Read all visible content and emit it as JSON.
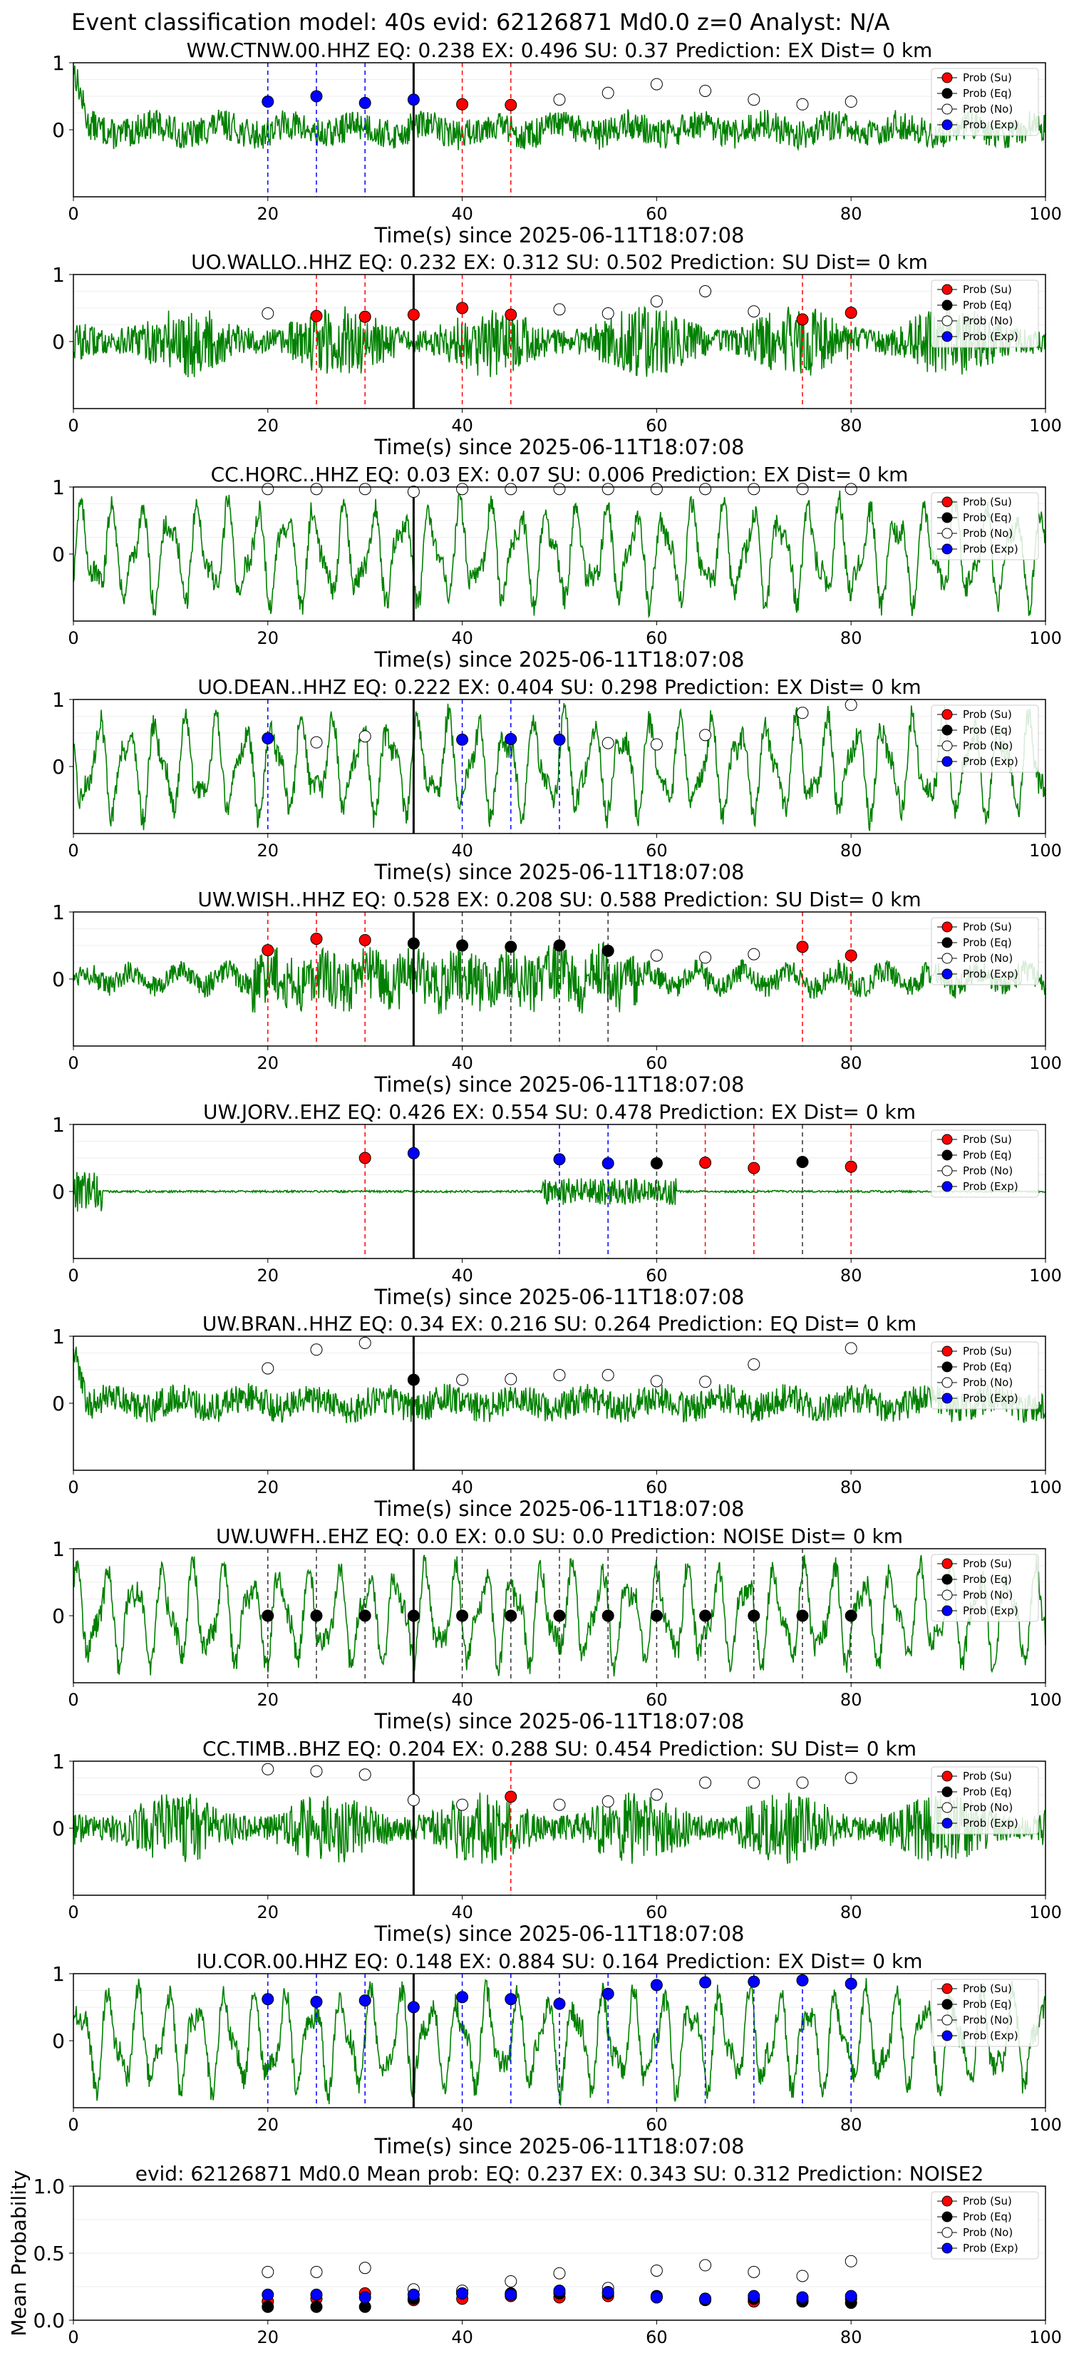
{
  "figure": {
    "suptitle": "Event classification model: 40s evid: 62126871 Md0.0 z=0 Analyst: N/A",
    "xlabel": "Time(s) since 2025-06-11T18:07:08",
    "legend": [
      "Prob (Su)",
      "Prob (Eq)",
      "Prob (No)",
      "Prob (Exp)"
    ],
    "colors": {
      "su": "#ff0000",
      "eq": "#000000",
      "no": "#ffffff",
      "exp": "#0000ff",
      "trace": "#008000"
    },
    "xticks": [
      "0",
      "20",
      "40",
      "60",
      "80",
      "100"
    ],
    "yticks_trace": [
      "0",
      "1"
    ]
  },
  "chart_data": [
    {
      "type": "scatter",
      "title": "WW.CTNW.00.HHZ   EQ: 0.238   EX: 0.496   SU: 0.37   Prediction: EX    Dist= 0 km",
      "xlim": [
        0,
        100
      ],
      "ylim": [
        -1,
        1
      ],
      "trace_style": "noise",
      "event_line": 35,
      "points": [
        {
          "x": 20,
          "y": 0.42,
          "c": "exp"
        },
        {
          "x": 25,
          "y": 0.5,
          "c": "exp"
        },
        {
          "x": 30,
          "y": 0.4,
          "c": "exp"
        },
        {
          "x": 35,
          "y": 0.45,
          "c": "exp"
        },
        {
          "x": 40,
          "y": 0.38,
          "c": "su"
        },
        {
          "x": 45,
          "y": 0.37,
          "c": "su"
        },
        {
          "x": 50,
          "y": 0.45,
          "c": "no"
        },
        {
          "x": 55,
          "y": 0.55,
          "c": "no"
        },
        {
          "x": 60,
          "y": 0.68,
          "c": "no"
        },
        {
          "x": 65,
          "y": 0.58,
          "c": "no"
        },
        {
          "x": 70,
          "y": 0.45,
          "c": "no"
        },
        {
          "x": 75,
          "y": 0.38,
          "c": "no"
        },
        {
          "x": 80,
          "y": 0.42,
          "c": "no"
        }
      ]
    },
    {
      "type": "scatter",
      "title": "UO.WALLO..HHZ   EQ: 0.232  EX: 0.312  SU: 0.502   Prediction: SU    Dist= 0 km",
      "xlim": [
        0,
        100
      ],
      "ylim": [
        -1,
        1
      ],
      "trace_style": "noisy",
      "event_line": 35,
      "points": [
        {
          "x": 20,
          "y": 0.42,
          "c": "no"
        },
        {
          "x": 25,
          "y": 0.38,
          "c": "su"
        },
        {
          "x": 30,
          "y": 0.37,
          "c": "su"
        },
        {
          "x": 35,
          "y": 0.4,
          "c": "su"
        },
        {
          "x": 40,
          "y": 0.5,
          "c": "su"
        },
        {
          "x": 45,
          "y": 0.4,
          "c": "su"
        },
        {
          "x": 50,
          "y": 0.48,
          "c": "no"
        },
        {
          "x": 55,
          "y": 0.42,
          "c": "no"
        },
        {
          "x": 60,
          "y": 0.6,
          "c": "no"
        },
        {
          "x": 65,
          "y": 0.75,
          "c": "no"
        },
        {
          "x": 70,
          "y": 0.45,
          "c": "no"
        },
        {
          "x": 75,
          "y": 0.33,
          "c": "su"
        },
        {
          "x": 80,
          "y": 0.43,
          "c": "su"
        }
      ]
    },
    {
      "type": "scatter",
      "title": "CC.HORC..HHZ   EQ: 0.03  EX: 0.07  SU: 0.006   Prediction: EX    Dist= 0 km",
      "xlim": [
        0,
        100
      ],
      "ylim": [
        -1,
        1
      ],
      "trace_style": "wave",
      "event_line": 35,
      "points": [
        {
          "x": 20,
          "y": 0.97,
          "c": "no"
        },
        {
          "x": 25,
          "y": 0.97,
          "c": "no"
        },
        {
          "x": 30,
          "y": 0.97,
          "c": "no"
        },
        {
          "x": 35,
          "y": 0.93,
          "c": "no"
        },
        {
          "x": 40,
          "y": 0.97,
          "c": "no"
        },
        {
          "x": 45,
          "y": 0.97,
          "c": "no"
        },
        {
          "x": 50,
          "y": 0.97,
          "c": "no"
        },
        {
          "x": 55,
          "y": 0.97,
          "c": "no"
        },
        {
          "x": 60,
          "y": 0.97,
          "c": "no"
        },
        {
          "x": 65,
          "y": 0.97,
          "c": "no"
        },
        {
          "x": 70,
          "y": 0.97,
          "c": "no"
        },
        {
          "x": 75,
          "y": 0.97,
          "c": "no"
        },
        {
          "x": 80,
          "y": 0.97,
          "c": "no"
        }
      ]
    },
    {
      "type": "scatter",
      "title": "UO.DEAN..HHZ   EQ: 0.222  EX: 0.404  SU: 0.298   Prediction: EX    Dist= 0 km",
      "xlim": [
        0,
        100
      ],
      "ylim": [
        -1,
        1
      ],
      "trace_style": "wave",
      "event_line": 35,
      "points": [
        {
          "x": 20,
          "y": 0.42,
          "c": "exp"
        },
        {
          "x": 25,
          "y": 0.36,
          "c": "no"
        },
        {
          "x": 30,
          "y": 0.45,
          "c": "no"
        },
        {
          "x": 40,
          "y": 0.4,
          "c": "exp"
        },
        {
          "x": 45,
          "y": 0.41,
          "c": "exp"
        },
        {
          "x": 50,
          "y": 0.4,
          "c": "exp"
        },
        {
          "x": 55,
          "y": 0.35,
          "c": "no"
        },
        {
          "x": 60,
          "y": 0.33,
          "c": "no"
        },
        {
          "x": 65,
          "y": 0.47,
          "c": "no"
        },
        {
          "x": 75,
          "y": 0.8,
          "c": "no"
        },
        {
          "x": 80,
          "y": 0.92,
          "c": "no"
        }
      ]
    },
    {
      "type": "scatter",
      "title": "UW.WISH..HHZ   EQ: 0.528  EX: 0.208  SU: 0.588   Prediction: SU    Dist= 0 km",
      "xlim": [
        0,
        100
      ],
      "ylim": [
        -1,
        1
      ],
      "trace_style": "burst",
      "event_line": 35,
      "points": [
        {
          "x": 20,
          "y": 0.43,
          "c": "su"
        },
        {
          "x": 25,
          "y": 0.6,
          "c": "su"
        },
        {
          "x": 30,
          "y": 0.58,
          "c": "su"
        },
        {
          "x": 35,
          "y": 0.53,
          "c": "eq"
        },
        {
          "x": 40,
          "y": 0.5,
          "c": "eq"
        },
        {
          "x": 45,
          "y": 0.48,
          "c": "eq"
        },
        {
          "x": 50,
          "y": 0.5,
          "c": "eq"
        },
        {
          "x": 55,
          "y": 0.42,
          "c": "eq"
        },
        {
          "x": 60,
          "y": 0.35,
          "c": "no"
        },
        {
          "x": 65,
          "y": 0.32,
          "c": "no"
        },
        {
          "x": 70,
          "y": 0.37,
          "c": "no"
        },
        {
          "x": 75,
          "y": 0.48,
          "c": "su"
        },
        {
          "x": 80,
          "y": 0.35,
          "c": "su"
        }
      ]
    },
    {
      "type": "scatter",
      "title": "UW.JORV..EHZ   EQ: 0.426  EX: 0.554  SU: 0.478   Prediction: EX    Dist= 0 km",
      "xlim": [
        0,
        100
      ],
      "ylim": [
        -1,
        1
      ],
      "trace_style": "quiet",
      "event_line": 35,
      "points": [
        {
          "x": 30,
          "y": 0.5,
          "c": "su"
        },
        {
          "x": 35,
          "y": 0.57,
          "c": "exp"
        },
        {
          "x": 50,
          "y": 0.48,
          "c": "exp"
        },
        {
          "x": 55,
          "y": 0.42,
          "c": "exp"
        },
        {
          "x": 60,
          "y": 0.42,
          "c": "eq"
        },
        {
          "x": 65,
          "y": 0.43,
          "c": "su"
        },
        {
          "x": 70,
          "y": 0.35,
          "c": "su"
        },
        {
          "x": 75,
          "y": 0.44,
          "c": "eq"
        },
        {
          "x": 80,
          "y": 0.37,
          "c": "su"
        }
      ]
    },
    {
      "type": "scatter",
      "title": "UW.BRAN..HHZ   EQ: 0.34  EX: 0.216  SU: 0.264   Prediction: EQ    Dist= 0 km",
      "xlim": [
        0,
        100
      ],
      "ylim": [
        -1,
        1
      ],
      "trace_style": "noise",
      "event_line": 35,
      "points": [
        {
          "x": 20,
          "y": 0.52,
          "c": "no"
        },
        {
          "x": 25,
          "y": 0.8,
          "c": "no"
        },
        {
          "x": 30,
          "y": 0.9,
          "c": "no"
        },
        {
          "x": 35,
          "y": 0.35,
          "c": "eq"
        },
        {
          "x": 40,
          "y": 0.35,
          "c": "no"
        },
        {
          "x": 45,
          "y": 0.36,
          "c": "no"
        },
        {
          "x": 50,
          "y": 0.42,
          "c": "no"
        },
        {
          "x": 55,
          "y": 0.42,
          "c": "no"
        },
        {
          "x": 60,
          "y": 0.33,
          "c": "no"
        },
        {
          "x": 65,
          "y": 0.32,
          "c": "no"
        },
        {
          "x": 70,
          "y": 0.58,
          "c": "no"
        },
        {
          "x": 80,
          "y": 0.82,
          "c": "no"
        }
      ]
    },
    {
      "type": "scatter",
      "title": "UW.UWFH..EHZ   EQ: 0.0  EX: 0.0  SU: 0.0   Prediction: NOISE    Dist= 0 km",
      "xlim": [
        0,
        100
      ],
      "ylim": [
        -1,
        1
      ],
      "trace_style": "wave",
      "event_line": 35,
      "points": [
        {
          "x": 20,
          "y": 0.0,
          "c": "eq"
        },
        {
          "x": 25,
          "y": 0.0,
          "c": "eq"
        },
        {
          "x": 30,
          "y": 0.0,
          "c": "eq"
        },
        {
          "x": 35,
          "y": 0.0,
          "c": "eq"
        },
        {
          "x": 40,
          "y": 0.0,
          "c": "eq"
        },
        {
          "x": 45,
          "y": 0.0,
          "c": "eq"
        },
        {
          "x": 50,
          "y": 0.0,
          "c": "eq"
        },
        {
          "x": 55,
          "y": 0.0,
          "c": "eq"
        },
        {
          "x": 60,
          "y": 0.0,
          "c": "eq"
        },
        {
          "x": 65,
          "y": 0.0,
          "c": "eq"
        },
        {
          "x": 70,
          "y": 0.0,
          "c": "eq"
        },
        {
          "x": 75,
          "y": 0.0,
          "c": "eq"
        },
        {
          "x": 80,
          "y": 0.0,
          "c": "eq"
        }
      ]
    },
    {
      "type": "scatter",
      "title": "CC.TIMB..BHZ   EQ: 0.204  EX: 0.288  SU: 0.454   Prediction: SU    Dist= 0 km",
      "xlim": [
        0,
        100
      ],
      "ylim": [
        -1,
        1
      ],
      "trace_style": "noisy",
      "event_line": 35,
      "points": [
        {
          "x": 20,
          "y": 0.88,
          "c": "no"
        },
        {
          "x": 25,
          "y": 0.85,
          "c": "no"
        },
        {
          "x": 30,
          "y": 0.8,
          "c": "no"
        },
        {
          "x": 35,
          "y": 0.42,
          "c": "no"
        },
        {
          "x": 40,
          "y": 0.35,
          "c": "no"
        },
        {
          "x": 45,
          "y": 0.47,
          "c": "su"
        },
        {
          "x": 50,
          "y": 0.35,
          "c": "no"
        },
        {
          "x": 55,
          "y": 0.4,
          "c": "no"
        },
        {
          "x": 60,
          "y": 0.5,
          "c": "no"
        },
        {
          "x": 65,
          "y": 0.68,
          "c": "no"
        },
        {
          "x": 70,
          "y": 0.68,
          "c": "no"
        },
        {
          "x": 75,
          "y": 0.68,
          "c": "no"
        },
        {
          "x": 80,
          "y": 0.75,
          "c": "no"
        }
      ]
    },
    {
      "type": "scatter",
      "title": "IU.COR.00.HHZ   EQ: 0.148  EX: 0.884  SU: 0.164   Prediction: EX    Dist= 0 km",
      "xlim": [
        0,
        100
      ],
      "ylim": [
        -1,
        1
      ],
      "trace_style": "wave",
      "event_line": 35,
      "points": [
        {
          "x": 20,
          "y": 0.62,
          "c": "exp"
        },
        {
          "x": 25,
          "y": 0.58,
          "c": "exp"
        },
        {
          "x": 30,
          "y": 0.6,
          "c": "exp"
        },
        {
          "x": 35,
          "y": 0.5,
          "c": "exp"
        },
        {
          "x": 40,
          "y": 0.65,
          "c": "exp"
        },
        {
          "x": 45,
          "y": 0.62,
          "c": "exp"
        },
        {
          "x": 50,
          "y": 0.55,
          "c": "exp"
        },
        {
          "x": 55,
          "y": 0.7,
          "c": "exp"
        },
        {
          "x": 60,
          "y": 0.83,
          "c": "exp"
        },
        {
          "x": 65,
          "y": 0.87,
          "c": "exp"
        },
        {
          "x": 70,
          "y": 0.88,
          "c": "exp"
        },
        {
          "x": 75,
          "y": 0.9,
          "c": "exp"
        },
        {
          "x": 80,
          "y": 0.85,
          "c": "exp"
        }
      ]
    },
    {
      "type": "scatter",
      "title": "evid: 62126871  Md0.0   Mean prob:   EQ: 0.237  EX: 0.343  SU: 0.312   Prediction: NOISE2",
      "ylabel": "Mean Probability",
      "xlim": [
        0,
        100
      ],
      "ylim": [
        0,
        1
      ],
      "yticks": [
        "0.0",
        "0.5",
        "1.0"
      ],
      "series": [
        {
          "name": "Prob (Su)",
          "c": "su",
          "x": [
            20,
            25,
            30,
            35,
            40,
            45,
            50,
            55,
            60,
            65,
            70,
            75,
            80
          ],
          "y": [
            0.14,
            0.16,
            0.2,
            0.15,
            0.16,
            0.18,
            0.17,
            0.18,
            0.17,
            0.16,
            0.14,
            0.15,
            0.16
          ]
        },
        {
          "name": "Prob (Eq)",
          "c": "eq",
          "x": [
            20,
            25,
            30,
            35,
            40,
            45,
            50,
            55,
            60,
            65,
            70,
            75,
            80
          ],
          "y": [
            0.1,
            0.1,
            0.1,
            0.16,
            0.2,
            0.2,
            0.2,
            0.2,
            0.18,
            0.15,
            0.16,
            0.14,
            0.13
          ]
        },
        {
          "name": "Prob (No)",
          "c": "no",
          "x": [
            20,
            25,
            30,
            35,
            40,
            45,
            50,
            55,
            60,
            65,
            70,
            75,
            80
          ],
          "y": [
            0.36,
            0.36,
            0.39,
            0.23,
            0.22,
            0.29,
            0.35,
            0.24,
            0.37,
            0.41,
            0.36,
            0.33,
            0.44
          ]
        },
        {
          "name": "Prob (Exp)",
          "c": "exp",
          "x": [
            20,
            25,
            30,
            35,
            40,
            45,
            50,
            55,
            60,
            65,
            70,
            75,
            80
          ],
          "y": [
            0.19,
            0.19,
            0.17,
            0.19,
            0.2,
            0.19,
            0.22,
            0.21,
            0.17,
            0.16,
            0.18,
            0.17,
            0.18
          ]
        }
      ]
    }
  ]
}
